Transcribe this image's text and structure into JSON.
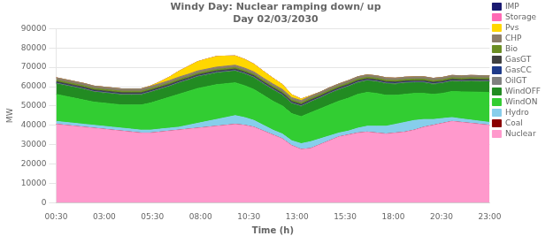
{
  "chart_data": {
    "type": "area",
    "title": "Windy Day: Nuclear ramping down/ up\nDay 02/03/2030",
    "x_label": "Time (h)",
    "y_label": "MW",
    "stacked": true,
    "grid": "y",
    "legend": "right",
    "x": [
      0,
      0.48913,
      0.978261,
      1.467391,
      1.956522,
      2.445652,
      2.934783,
      3.423913,
      3.913043,
      4.402174,
      4.891304,
      5.380435,
      5.869565,
      6.358696,
      6.847826,
      7.336957,
      7.826087,
      8.315217,
      8.804348,
      9.293478,
      9.782609,
      10.271739,
      10.76087,
      11.25,
      11.73913,
      12.228261,
      12.717391,
      13.206522,
      13.695652,
      14.184783,
      14.673913,
      15.163043,
      15.652174,
      16.141304,
      16.630435,
      17.119565,
      17.608696,
      18.097826,
      18.586957,
      19.076087,
      19.565217,
      20.054348,
      20.543478,
      21.032609,
      21.521739,
      22.01087,
      22.5
    ],
    "xlim": [
      0,
      22.5
    ],
    "xticks": [
      {
        "value": 0,
        "label": "00:30"
      },
      {
        "value": 2.5,
        "label": "03:00"
      },
      {
        "value": 5,
        "label": "05:30"
      },
      {
        "value": 7.5,
        "label": "08:00"
      },
      {
        "value": 10,
        "label": "10:30"
      },
      {
        "value": 12.5,
        "label": "13:00"
      },
      {
        "value": 15,
        "label": "15:30"
      },
      {
        "value": 17.5,
        "label": "18:00"
      },
      {
        "value": 20,
        "label": "20:30"
      },
      {
        "value": 22.5,
        "label": "23:00"
      }
    ],
    "ylim": [
      0,
      90000
    ],
    "yticks": [
      0,
      10000,
      20000,
      30000,
      40000,
      50000,
      60000,
      70000,
      80000,
      90000
    ],
    "series": [
      {
        "name": "Nuclear",
        "color": "#FF99CC",
        "values": [
          40500,
          40000,
          39500,
          39000,
          38500,
          38000,
          37500,
          37000,
          36500,
          36000,
          36000,
          36500,
          37000,
          37500,
          38000,
          38500,
          39000,
          39500,
          40000,
          40500,
          40000,
          39000,
          37000,
          35000,
          33000,
          29500,
          27500,
          28000,
          30000,
          32000,
          34000,
          35000,
          36000,
          36500,
          36000,
          35500,
          36000,
          36500,
          37500,
          39000,
          40000,
          41000,
          42000,
          41500,
          41000,
          40500,
          40000
        ]
      },
      {
        "name": "Coal",
        "color": "#8B0000",
        "values": [
          0,
          0,
          0,
          0,
          0,
          0,
          0,
          0,
          0,
          0,
          0,
          0,
          0,
          0,
          0,
          0,
          0,
          0,
          0,
          0,
          0,
          0,
          0,
          0,
          0,
          0,
          0,
          0,
          0,
          0,
          0,
          0,
          0,
          0,
          0,
          0,
          0,
          0,
          0,
          0,
          0,
          0,
          0,
          0,
          0,
          0,
          0
        ]
      },
      {
        "name": "Hydro",
        "color": "#87CEEB",
        "values": [
          1500,
          1500,
          1500,
          1500,
          1500,
          1500,
          1500,
          1500,
          1500,
          1500,
          1500,
          1500,
          1500,
          1500,
          2000,
          2500,
          3000,
          3500,
          4000,
          4500,
          4000,
          3500,
          3000,
          2500,
          2500,
          2500,
          3000,
          3500,
          3000,
          2500,
          2000,
          2000,
          2500,
          3000,
          3500,
          4000,
          4500,
          5000,
          5000,
          4000,
          3000,
          2500,
          2000,
          1800,
          1700,
          1600,
          1500
        ]
      },
      {
        "name": "WindON",
        "color": "#32CD32",
        "values": [
          14000,
          13500,
          13000,
          12500,
          12000,
          12000,
          12000,
          12000,
          12500,
          13000,
          14000,
          15000,
          16000,
          17000,
          17500,
          18000,
          18000,
          18000,
          17500,
          17000,
          16500,
          16000,
          15500,
          15000,
          14500,
          14000,
          14000,
          15000,
          15500,
          16000,
          16500,
          17000,
          17500,
          17500,
          17000,
          16000,
          15000,
          14500,
          14000,
          13500,
          13000,
          13000,
          13500,
          14000,
          14500,
          15000,
          15500
        ]
      },
      {
        "name": "WindOFF",
        "color": "#228B22",
        "values": [
          5500,
          5500,
          5500,
          5500,
          5200,
          5200,
          5200,
          5200,
          5200,
          5200,
          5500,
          5500,
          5500,
          5800,
          5800,
          6000,
          6000,
          6000,
          6000,
          6000,
          6000,
          6000,
          5800,
          5800,
          5500,
          5200,
          5200,
          5500,
          5500,
          5800,
          5800,
          6000,
          6000,
          6000,
          6000,
          6000,
          5800,
          5800,
          5500,
          5500,
          5200,
          5200,
          5200,
          5200,
          5500,
          5500,
          5500
        ]
      },
      {
        "name": "OilGT",
        "color": "#808080",
        "values": [
          300,
          300,
          300,
          300,
          300,
          300,
          300,
          300,
          300,
          300,
          300,
          300,
          300,
          300,
          300,
          300,
          300,
          300,
          300,
          300,
          300,
          300,
          300,
          300,
          300,
          300,
          300,
          300,
          300,
          300,
          300,
          300,
          300,
          300,
          300,
          300,
          300,
          300,
          300,
          300,
          300,
          300,
          300,
          300,
          300,
          300,
          300
        ]
      },
      {
        "name": "GasCC",
        "color": "#1E3A8A",
        "values": [
          200,
          200,
          200,
          200,
          200,
          200,
          200,
          200,
          200,
          200,
          200,
          200,
          200,
          200,
          200,
          200,
          200,
          200,
          200,
          200,
          200,
          200,
          200,
          200,
          200,
          200,
          200,
          200,
          200,
          200,
          200,
          200,
          200,
          200,
          200,
          200,
          200,
          200,
          200,
          200,
          200,
          200,
          200,
          200,
          200,
          200,
          200
        ]
      },
      {
        "name": "GasGT",
        "color": "#404040",
        "values": [
          600,
          600,
          600,
          600,
          600,
          600,
          600,
          600,
          600,
          600,
          600,
          600,
          600,
          600,
          600,
          600,
          600,
          600,
          600,
          600,
          600,
          600,
          600,
          600,
          600,
          600,
          600,
          600,
          600,
          600,
          600,
          600,
          600,
          600,
          600,
          600,
          600,
          600,
          600,
          600,
          600,
          600,
          600,
          600,
          600,
          600,
          600
        ]
      },
      {
        "name": "Bio",
        "color": "#6B8E23",
        "values": [
          800,
          800,
          800,
          800,
          800,
          800,
          800,
          800,
          800,
          800,
          800,
          800,
          800,
          800,
          800,
          800,
          800,
          800,
          800,
          800,
          800,
          800,
          800,
          800,
          800,
          800,
          800,
          800,
          800,
          800,
          800,
          800,
          800,
          800,
          800,
          800,
          800,
          800,
          800,
          800,
          800,
          800,
          800,
          800,
          800,
          800,
          800
        ]
      },
      {
        "name": "CHP",
        "color": "#8B7D6B",
        "values": [
          1200,
          1200,
          1200,
          1200,
          1200,
          1200,
          1200,
          1200,
          1200,
          1200,
          1200,
          1200,
          1200,
          1200,
          1200,
          1200,
          1200,
          1200,
          1200,
          1200,
          1200,
          1200,
          1200,
          1200,
          1200,
          1200,
          1200,
          1200,
          1200,
          1200,
          1200,
          1200,
          1200,
          1200,
          1200,
          1200,
          1200,
          1200,
          1200,
          1200,
          1200,
          1200,
          1200,
          1200,
          1200,
          1200,
          1200
        ]
      },
      {
        "name": "Pvs",
        "color": "#FFD700",
        "values": [
          0,
          0,
          0,
          0,
          0,
          0,
          0,
          0,
          0,
          0,
          200,
          800,
          1800,
          3000,
          4000,
          4800,
          5200,
          5500,
          5200,
          4800,
          4500,
          4000,
          3500,
          3000,
          2500,
          1500,
          800,
          200,
          0,
          0,
          0,
          0,
          0,
          0,
          0,
          0,
          0,
          0,
          0,
          0,
          0,
          0,
          0,
          0,
          0,
          0,
          0
        ]
      },
      {
        "name": "Storage",
        "color": "#FF69B4",
        "values": [
          0,
          0,
          0,
          0,
          0,
          0,
          0,
          0,
          0,
          0,
          0,
          0,
          0,
          0,
          0,
          0,
          0,
          0,
          0,
          0,
          0,
          0,
          0,
          0,
          0,
          0,
          0,
          0,
          0,
          0,
          0,
          0,
          0,
          0,
          0,
          0,
          0,
          0,
          0,
          0,
          0,
          0,
          0,
          0,
          0,
          0,
          0
        ]
      },
      {
        "name": "IMP",
        "color": "#191970",
        "values": [
          0,
          0,
          0,
          0,
          0,
          0,
          0,
          0,
          0,
          0,
          0,
          0,
          0,
          0,
          0,
          0,
          0,
          0,
          0,
          0,
          0,
          0,
          0,
          0,
          0,
          0,
          0,
          0,
          0,
          0,
          0,
          0,
          0,
          0,
          0,
          0,
          0,
          0,
          0,
          0,
          0,
          0,
          0,
          0,
          0,
          0,
          0
        ]
      }
    ]
  }
}
